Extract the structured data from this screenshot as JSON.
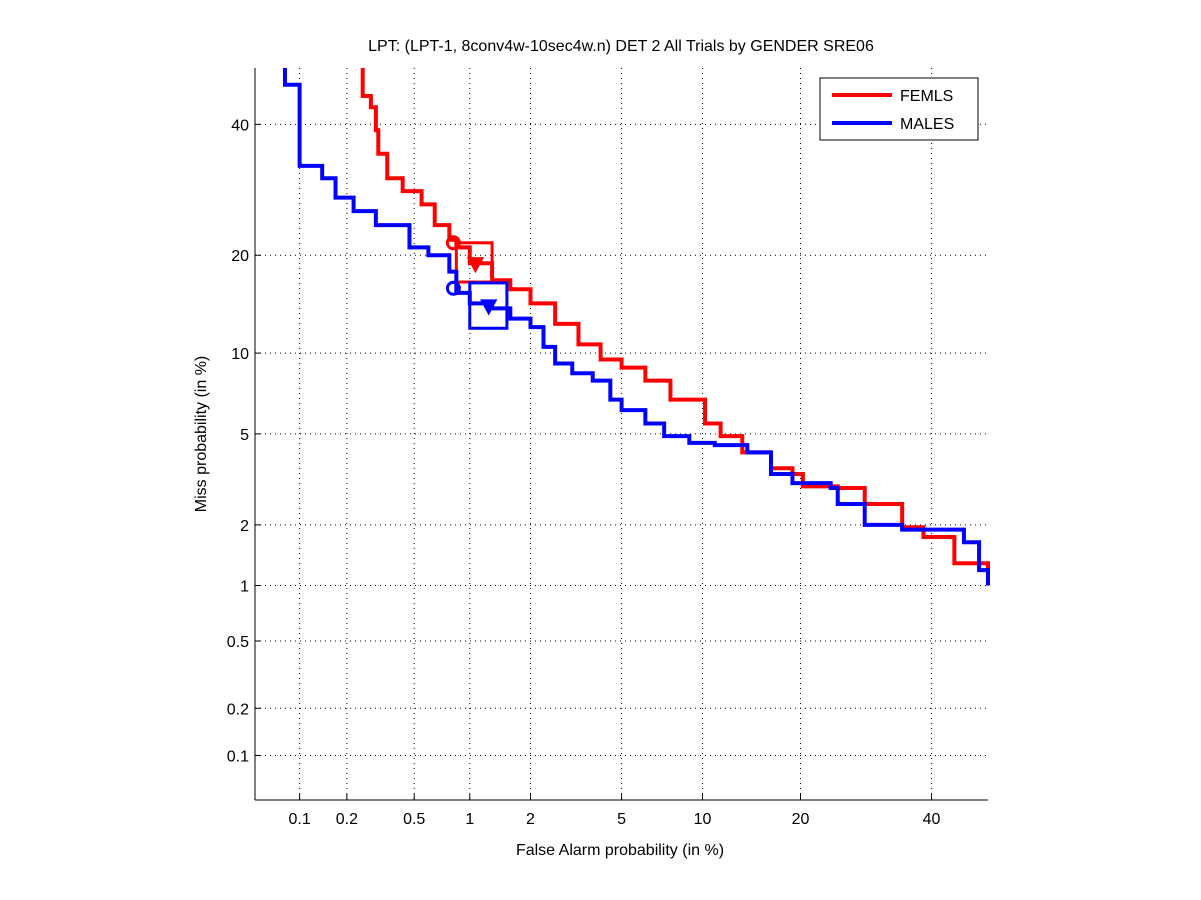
{
  "chart_data": {
    "type": "line",
    "scale": "probit (normal deviate) DET",
    "title": "LPT: (LPT-1, 8conv4w-10sec4w.n) DET 2 All Trials by GENDER SRE06",
    "xlabel": "False Alarm probability (in %)",
    "ylabel": "Miss probability (in %)",
    "xlim": [
      0.05,
      50
    ],
    "ylim": [
      0.05,
      50
    ],
    "xticks": [
      0.1,
      0.2,
      0.5,
      1,
      2,
      5,
      10,
      20,
      40
    ],
    "xtick_labels": [
      "0.1",
      "0.2",
      "0.5",
      "1",
      "2",
      "5",
      "10",
      "20",
      "40"
    ],
    "yticks": [
      0.1,
      0.2,
      0.5,
      1,
      2,
      5,
      10,
      20,
      40
    ],
    "ytick_labels": [
      "0.1",
      "0.2",
      "0.5",
      "1",
      "2",
      "5",
      "10",
      "20",
      "40"
    ],
    "grid": true,
    "legend_position": "top-right",
    "series": [
      {
        "name": "FEMLS",
        "color": "#ff0000",
        "x": [
          0.25,
          0.25,
          0.28,
          0.3,
          0.31,
          0.35,
          0.43,
          0.55,
          0.65,
          0.78,
          0.85,
          1.0,
          1.3,
          1.6,
          2.0,
          2.6,
          3.3,
          4.1,
          5,
          6.2,
          7.7,
          10.2,
          11.5,
          13.5,
          16.5,
          19,
          20.3,
          25,
          29,
          35,
          38.6,
          44,
          50
        ],
        "y": [
          50,
          45,
          43,
          39,
          35,
          31,
          29,
          27,
          24,
          22,
          21,
          19,
          17,
          16,
          14.5,
          12.5,
          10.7,
          9.5,
          8.9,
          8.0,
          6.8,
          5.5,
          4.9,
          4.2,
          3.6,
          3.4,
          3.0,
          2.95,
          2.5,
          1.95,
          1.75,
          1.3,
          1.2
        ],
        "circle_marker": {
          "x": 0.82,
          "y": 21.6
        },
        "triangle_marker": {
          "x": 1.07,
          "y": 18.9
        },
        "box": {
          "x": [
            0.85,
            1.3
          ],
          "y": [
            16.8,
            21.6
          ]
        }
      },
      {
        "name": "MALES",
        "color": "#0000ff",
        "x": [
          0.08,
          0.08,
          0.095,
          0.1,
          0.1,
          0.12,
          0.14,
          0.17,
          0.22,
          0.3,
          0.47,
          0.6,
          0.78,
          0.85,
          1.0,
          1.3,
          1.6,
          2.0,
          2.3,
          2.6,
          3.1,
          3.8,
          4.5,
          5,
          6.2,
          7.3,
          9,
          11,
          14,
          16.5,
          19,
          24,
          25,
          29,
          35,
          45.7,
          48.4,
          50
        ],
        "y": [
          50,
          47,
          47,
          44,
          33,
          33,
          31,
          28,
          26,
          24,
          21,
          20,
          18,
          15.6,
          14.5,
          14,
          13,
          12.2,
          10.5,
          9.2,
          8.5,
          8.0,
          6.8,
          6.2,
          5.5,
          4.9,
          4.6,
          4.5,
          4.2,
          3.4,
          3.1,
          2.95,
          2.5,
          2.0,
          1.9,
          1.65,
          1.2,
          1.0
        ],
        "circle_marker": {
          "x": 0.82,
          "y": 16.1
        },
        "triangle_marker": {
          "x": 1.25,
          "y": 14.2
        },
        "box": {
          "x": [
            1.0,
            1.54
          ],
          "y": [
            12.1,
            16.7
          ]
        }
      }
    ]
  }
}
